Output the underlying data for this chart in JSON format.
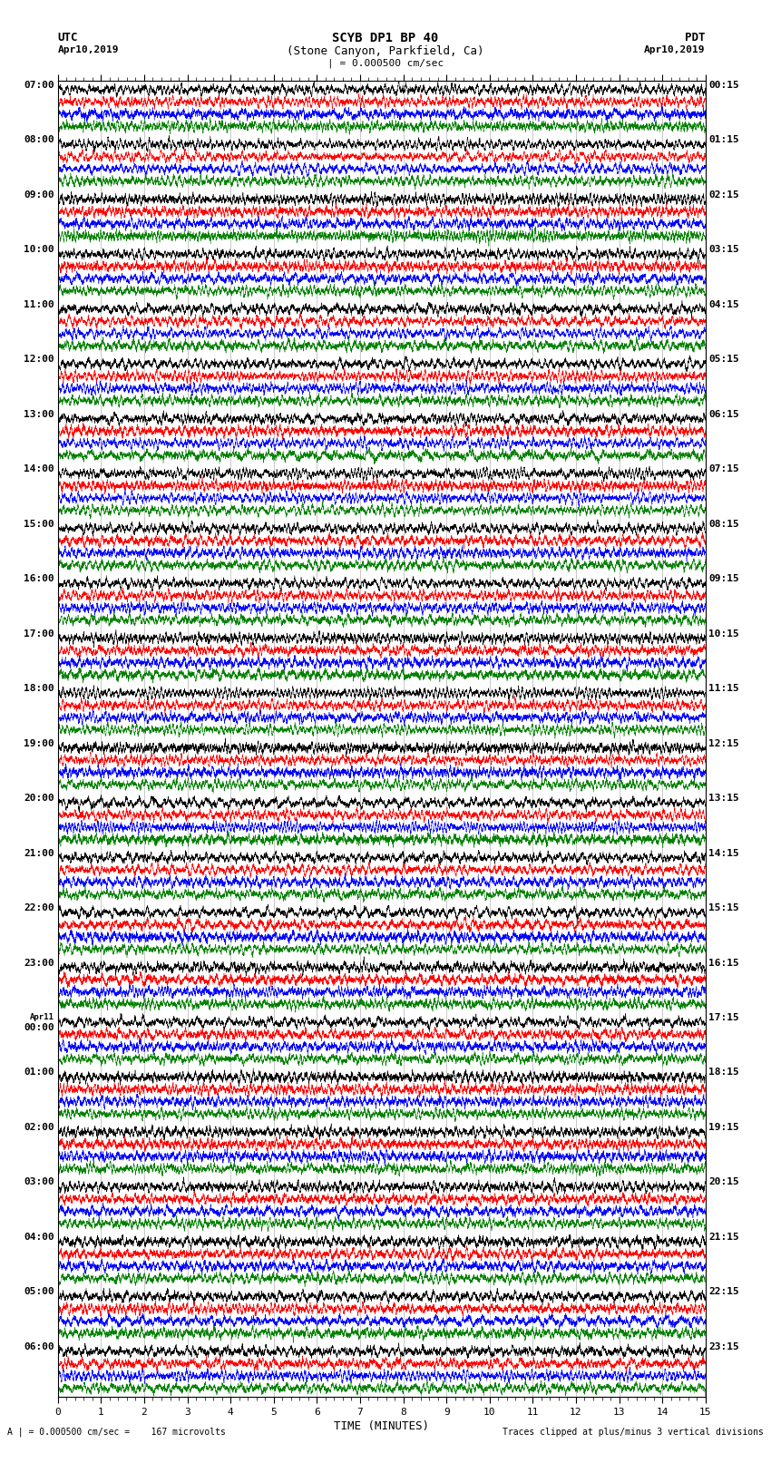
{
  "title_line1": "SCYB DP1 BP 40",
  "title_line2": "(Stone Canyon, Parkfield, Ca)",
  "scale_label": "| = 0.000500 cm/sec",
  "left_header_line1": "UTC",
  "left_header_line2": "Apr10,2019",
  "right_header_line1": "PDT",
  "right_header_line2": "Apr10,2019",
  "xlabel": "TIME (MINUTES)",
  "footer_left": "A | = 0.000500 cm/sec =    167 microvolts",
  "footer_right": "Traces clipped at plus/minus 3 vertical divisions",
  "utc_labels": [
    "07:00",
    "08:00",
    "09:00",
    "10:00",
    "11:00",
    "12:00",
    "13:00",
    "14:00",
    "15:00",
    "16:00",
    "17:00",
    "18:00",
    "19:00",
    "20:00",
    "21:00",
    "22:00",
    "23:00",
    "Apr11",
    "00:00",
    "01:00",
    "02:00",
    "03:00",
    "04:00",
    "05:00",
    "06:00"
  ],
  "pdt_labels": [
    "00:15",
    "01:15",
    "02:15",
    "03:15",
    "04:15",
    "05:15",
    "06:15",
    "07:15",
    "08:15",
    "09:15",
    "10:15",
    "11:15",
    "12:15",
    "13:15",
    "14:15",
    "15:15",
    "16:15",
    "17:15",
    "18:15",
    "19:15",
    "20:15",
    "21:15",
    "22:15",
    "23:15"
  ],
  "trace_colors": [
    "black",
    "red",
    "blue",
    "green"
  ],
  "n_hours": 24,
  "traces_per_hour": 4,
  "background_color": "white",
  "xmin": 0,
  "xmax": 15,
  "xticks": [
    0,
    1,
    2,
    3,
    4,
    5,
    6,
    7,
    8,
    9,
    10,
    11,
    12,
    13,
    14,
    15
  ]
}
